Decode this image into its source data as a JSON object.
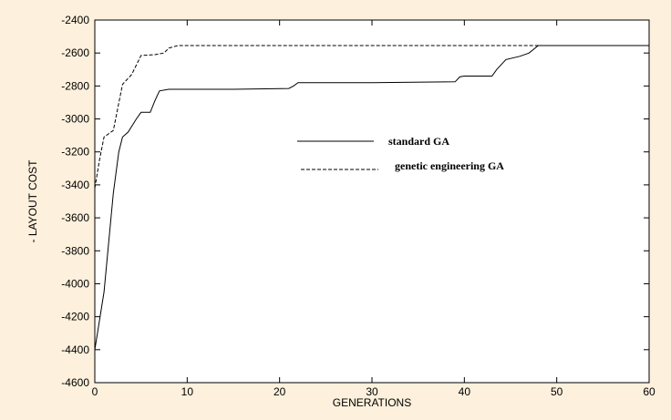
{
  "chart_data": {
    "type": "line",
    "title": "",
    "xlabel": "GENERATIONS",
    "ylabel": "- LAYOUT COST",
    "xlim": [
      0,
      60
    ],
    "ylim": [
      -4600,
      -2400
    ],
    "x_ticks": [
      0,
      10,
      20,
      30,
      40,
      50,
      60
    ],
    "y_ticks": [
      -2400,
      -2600,
      -2800,
      -3000,
      -3200,
      -3400,
      -3600,
      -3800,
      -4000,
      -4200,
      -4400,
      -4600
    ],
    "grid": false,
    "legend_position": "center",
    "colors": {
      "background": "#fdf0dc",
      "plot_area": "#ffffff",
      "line": "#000000"
    },
    "series": [
      {
        "name": "standard GA",
        "style": "solid",
        "points": [
          [
            0,
            -4400
          ],
          [
            1,
            -4050
          ],
          [
            2,
            -3450
          ],
          [
            2.6,
            -3200
          ],
          [
            3,
            -3110
          ],
          [
            3.6,
            -3080
          ],
          [
            4.5,
            -3000
          ],
          [
            5,
            -2960
          ],
          [
            6,
            -2960
          ],
          [
            6.5,
            -2890
          ],
          [
            7,
            -2830
          ],
          [
            8,
            -2820
          ],
          [
            15,
            -2820
          ],
          [
            21,
            -2815
          ],
          [
            21.5,
            -2800
          ],
          [
            22,
            -2780
          ],
          [
            30,
            -2780
          ],
          [
            39,
            -2775
          ],
          [
            39.5,
            -2745
          ],
          [
            40,
            -2740
          ],
          [
            43,
            -2740
          ],
          [
            43.5,
            -2700
          ],
          [
            44.5,
            -2640
          ],
          [
            46,
            -2620
          ],
          [
            47,
            -2600
          ],
          [
            48,
            -2555
          ],
          [
            60,
            -2555
          ]
        ]
      },
      {
        "name": "genetic engineering GA",
        "style": "dashed",
        "points": [
          [
            0,
            -3420
          ],
          [
            0.5,
            -3250
          ],
          [
            1,
            -3110
          ],
          [
            2,
            -3070
          ],
          [
            3,
            -2790
          ],
          [
            4,
            -2730
          ],
          [
            5,
            -2615
          ],
          [
            6.5,
            -2610
          ],
          [
            7.5,
            -2600
          ],
          [
            8,
            -2570
          ],
          [
            9,
            -2555
          ],
          [
            60,
            -2555
          ]
        ]
      }
    ]
  }
}
